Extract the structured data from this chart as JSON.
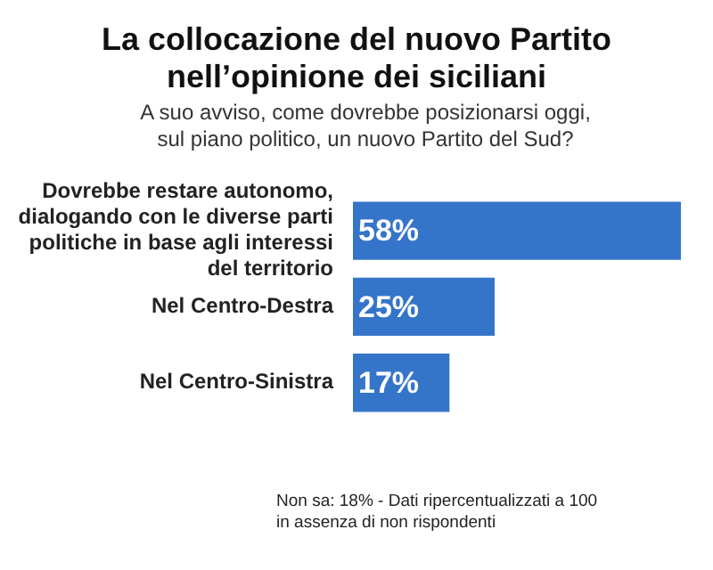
{
  "chart_data": {
    "type": "bar",
    "orientation": "horizontal",
    "title": "La collocazione del nuovo Partito nell’opinione dei siciliani",
    "subtitle": "A suo avviso, come dovrebbe posizionarsi oggi, sul piano politico, un nuovo Partito del Sud?",
    "categories": [
      "Dovrebbe restare autonomo, dialogando con le diverse parti politiche in base agli interessi del territorio",
      "Nel Centro-Destra",
      "Nel Centro-Sinistra"
    ],
    "values": [
      58,
      25,
      17
    ],
    "value_labels": [
      "58%",
      "25%",
      "17%"
    ],
    "color": "#3575c9",
    "annotations": [
      "Non sa: 18% - Dati ripercentualizzati a 100 in assenza di non rispondenti"
    ]
  }
}
